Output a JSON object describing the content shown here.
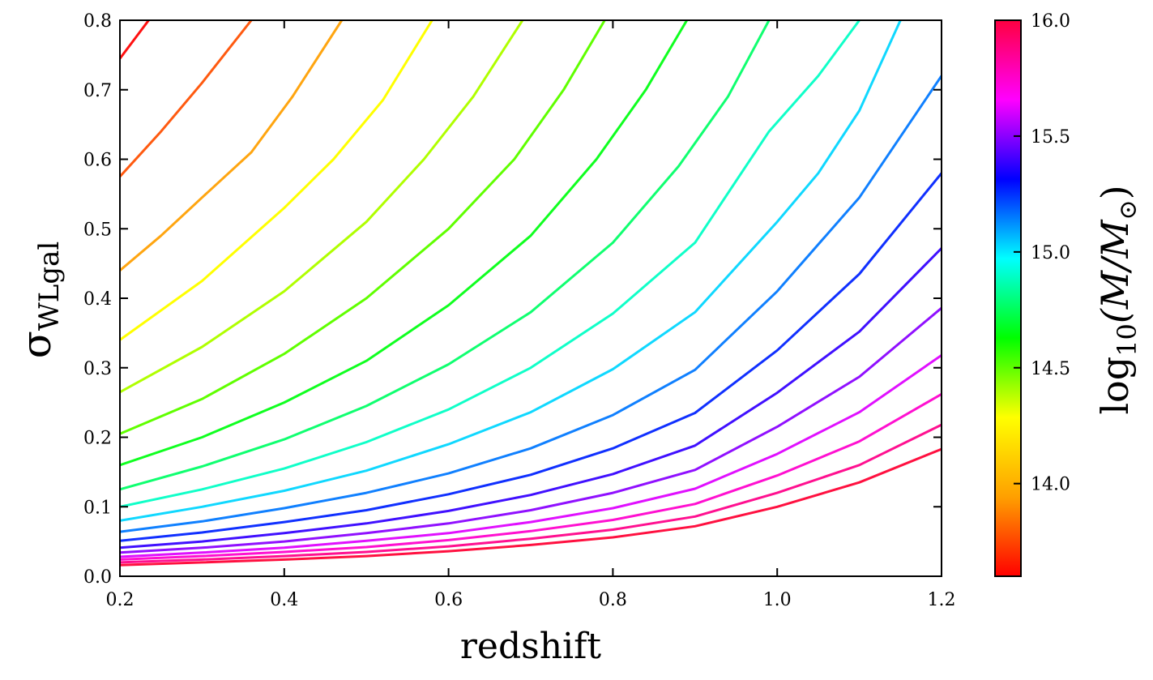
{
  "chart_data": {
    "type": "line",
    "xlabel": "redshift",
    "ylabel": {
      "main": "σ",
      "sub": "WLgal"
    },
    "xlim": [
      0.2,
      1.2
    ],
    "ylim": [
      0.0,
      0.8
    ],
    "x_ticks": [
      "0.2",
      "0.4",
      "0.6",
      "0.8",
      "1.0",
      "1.2"
    ],
    "y_ticks": [
      "0.0",
      "0.1",
      "0.2",
      "0.3",
      "0.4",
      "0.5",
      "0.6",
      "0.7",
      "0.8"
    ],
    "grid": false,
    "colorbar": {
      "label": {
        "pre": "log",
        "sub": "10",
        "post": "(M/M",
        "sunsym": "⊙",
        "close": ")"
      },
      "range": [
        13.6,
        16.0
      ],
      "ticks": [
        "14.0",
        "14.5",
        "15.0",
        "15.5",
        "16.0"
      ],
      "colormap": "hsv",
      "colors": [
        "#ff0000",
        "#ffa000",
        "#ffff00",
        "#00ff00",
        "#00ffff",
        "#0000ff",
        "#ff00ff",
        "#ff0040"
      ]
    },
    "series": [
      {
        "color": "#ff1010",
        "x": [
          0.2,
          0.235
        ],
        "y": [
          0.745,
          0.8
        ]
      },
      {
        "color": "#ff5a10",
        "x": [
          0.2,
          0.25,
          0.3,
          0.36
        ],
        "y": [
          0.575,
          0.64,
          0.71,
          0.8
        ]
      },
      {
        "color": "#ffa510",
        "x": [
          0.2,
          0.25,
          0.3,
          0.36,
          0.41,
          0.47
        ],
        "y": [
          0.44,
          0.49,
          0.545,
          0.61,
          0.69,
          0.8
        ]
      },
      {
        "color": "#ffff00",
        "x": [
          0.2,
          0.3,
          0.4,
          0.46,
          0.52,
          0.58
        ],
        "y": [
          0.34,
          0.425,
          0.53,
          0.6,
          0.685,
          0.8
        ]
      },
      {
        "color": "#b0ff00",
        "x": [
          0.2,
          0.3,
          0.4,
          0.5,
          0.57,
          0.63,
          0.69
        ],
        "y": [
          0.265,
          0.33,
          0.41,
          0.51,
          0.6,
          0.69,
          0.8
        ]
      },
      {
        "color": "#60ff00",
        "x": [
          0.2,
          0.3,
          0.4,
          0.5,
          0.6,
          0.68,
          0.74,
          0.79
        ],
        "y": [
          0.205,
          0.255,
          0.32,
          0.4,
          0.5,
          0.6,
          0.7,
          0.8
        ]
      },
      {
        "color": "#10ff20",
        "x": [
          0.2,
          0.3,
          0.4,
          0.5,
          0.6,
          0.7,
          0.78,
          0.84,
          0.89
        ],
        "y": [
          0.16,
          0.2,
          0.25,
          0.31,
          0.39,
          0.49,
          0.6,
          0.7,
          0.8
        ]
      },
      {
        "color": "#10ff70",
        "x": [
          0.2,
          0.3,
          0.4,
          0.5,
          0.6,
          0.7,
          0.8,
          0.88,
          0.94,
          0.99
        ],
        "y": [
          0.125,
          0.158,
          0.197,
          0.245,
          0.305,
          0.38,
          0.48,
          0.59,
          0.69,
          0.8
        ]
      },
      {
        "color": "#10ffc8",
        "x": [
          0.2,
          0.3,
          0.4,
          0.5,
          0.6,
          0.7,
          0.8,
          0.9,
          0.99,
          1.05,
          1.1
        ],
        "y": [
          0.1,
          0.125,
          0.155,
          0.193,
          0.24,
          0.3,
          0.378,
          0.48,
          0.64,
          0.72,
          0.8
        ]
      },
      {
        "color": "#10d8ff",
        "x": [
          0.2,
          0.3,
          0.4,
          0.5,
          0.6,
          0.7,
          0.8,
          0.9,
          1.0,
          1.05,
          1.1,
          1.15
        ],
        "y": [
          0.08,
          0.1,
          0.123,
          0.152,
          0.19,
          0.236,
          0.298,
          0.38,
          0.51,
          0.58,
          0.67,
          0.8
        ]
      },
      {
        "color": "#1080ff",
        "x": [
          0.2,
          0.3,
          0.4,
          0.5,
          0.6,
          0.7,
          0.8,
          0.9,
          1.0,
          1.1,
          1.2
        ],
        "y": [
          0.064,
          0.079,
          0.098,
          0.12,
          0.148,
          0.184,
          0.232,
          0.297,
          0.41,
          0.545,
          0.72
        ]
      },
      {
        "color": "#1030ff",
        "x": [
          0.2,
          0.3,
          0.4,
          0.5,
          0.6,
          0.7,
          0.8,
          0.9,
          1.0,
          1.1,
          1.2
        ],
        "y": [
          0.051,
          0.063,
          0.078,
          0.095,
          0.118,
          0.146,
          0.184,
          0.235,
          0.325,
          0.435,
          0.58
        ]
      },
      {
        "color": "#4010ff",
        "x": [
          0.2,
          0.3,
          0.4,
          0.5,
          0.6,
          0.7,
          0.8,
          0.9,
          1.0,
          1.1,
          1.2
        ],
        "y": [
          0.041,
          0.05,
          0.062,
          0.076,
          0.094,
          0.117,
          0.147,
          0.188,
          0.264,
          0.352,
          0.472
        ]
      },
      {
        "color": "#9010ff",
        "x": [
          0.2,
          0.3,
          0.4,
          0.5,
          0.6,
          0.7,
          0.8,
          0.9,
          1.0,
          1.1,
          1.2
        ],
        "y": [
          0.034,
          0.041,
          0.05,
          0.062,
          0.076,
          0.095,
          0.12,
          0.153,
          0.215,
          0.287,
          0.386
        ]
      },
      {
        "color": "#e010ff",
        "x": [
          0.2,
          0.3,
          0.4,
          0.5,
          0.6,
          0.7,
          0.8,
          0.9,
          1.0,
          1.1,
          1.2
        ],
        "y": [
          0.028,
          0.034,
          0.041,
          0.051,
          0.062,
          0.078,
          0.098,
          0.126,
          0.176,
          0.236,
          0.318
        ]
      },
      {
        "color": "#ff10d0",
        "x": [
          0.2,
          0.3,
          0.4,
          0.5,
          0.6,
          0.7,
          0.8,
          0.9,
          1.0,
          1.1,
          1.2
        ],
        "y": [
          0.024,
          0.029,
          0.035,
          0.042,
          0.052,
          0.065,
          0.081,
          0.104,
          0.145,
          0.194,
          0.262
        ]
      },
      {
        "color": "#ff1090",
        "x": [
          0.2,
          0.3,
          0.4,
          0.5,
          0.6,
          0.7,
          0.8,
          0.9,
          1.0,
          1.1,
          1.2
        ],
        "y": [
          0.02,
          0.024,
          0.029,
          0.035,
          0.043,
          0.054,
          0.067,
          0.086,
          0.12,
          0.16,
          0.218
        ]
      },
      {
        "color": "#ff1040",
        "x": [
          0.2,
          0.3,
          0.4,
          0.5,
          0.6,
          0.7,
          0.8,
          0.9,
          1.0,
          1.1,
          1.2
        ],
        "y": [
          0.016,
          0.02,
          0.024,
          0.029,
          0.036,
          0.045,
          0.056,
          0.072,
          0.1,
          0.135,
          0.183
        ]
      }
    ]
  }
}
